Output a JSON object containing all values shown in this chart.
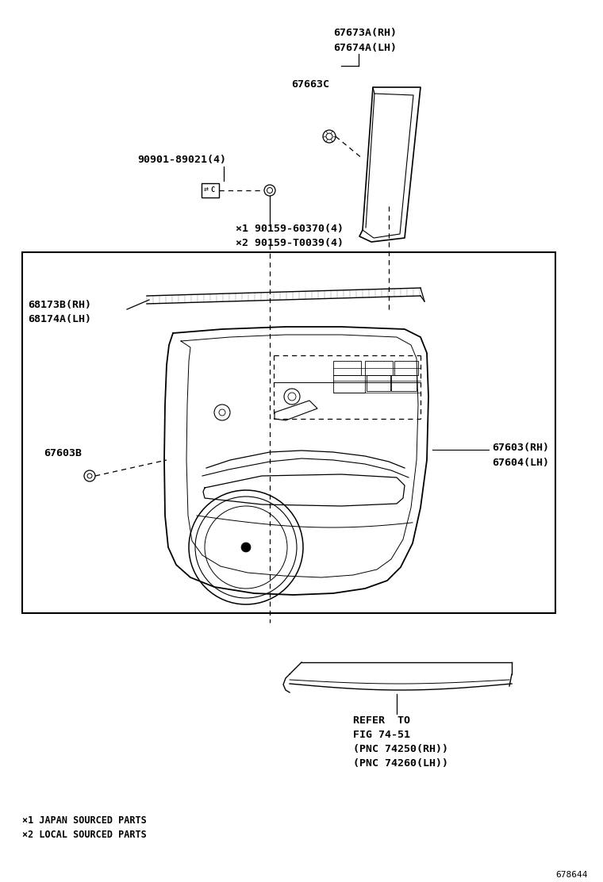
{
  "bg_color": "#ffffff",
  "fig_width": 7.6,
  "fig_height": 11.12,
  "dpi": 100,
  "labels": {
    "part_67673A_line1": "67673A(RH)",
    "part_67673A_line2": "67674A(LH)",
    "part_67663C": "67663C",
    "part_90901": "90901-89021(4)",
    "part_screws_line1": "×1 90159-60370(4)",
    "part_screws_line2": "×2 90159-T0039(4)",
    "part_68173B_line1": "68173B(RH)",
    "part_68173B_line2": "68174A(LH)",
    "part_67603B": "67603B",
    "part_67603_line1": "67603(RH)",
    "part_67603_line2": "67604(LH)",
    "refer_line1": "REFER  TO",
    "refer_line2": "FIG 74-51",
    "refer_line3": "(PNC 74250(RH))",
    "refer_line4": "(PNC 74260(LH))",
    "footnote1": "×1 JAPAN SOURCED PARTS",
    "footnote2": "×2 LOCAL SOURCED PARTS",
    "fig_number": "678644"
  },
  "colors": {
    "black": "#000000"
  },
  "font_sizes": {
    "part_label": 9.5,
    "small_label": 8.5,
    "fig_number": 8
  }
}
